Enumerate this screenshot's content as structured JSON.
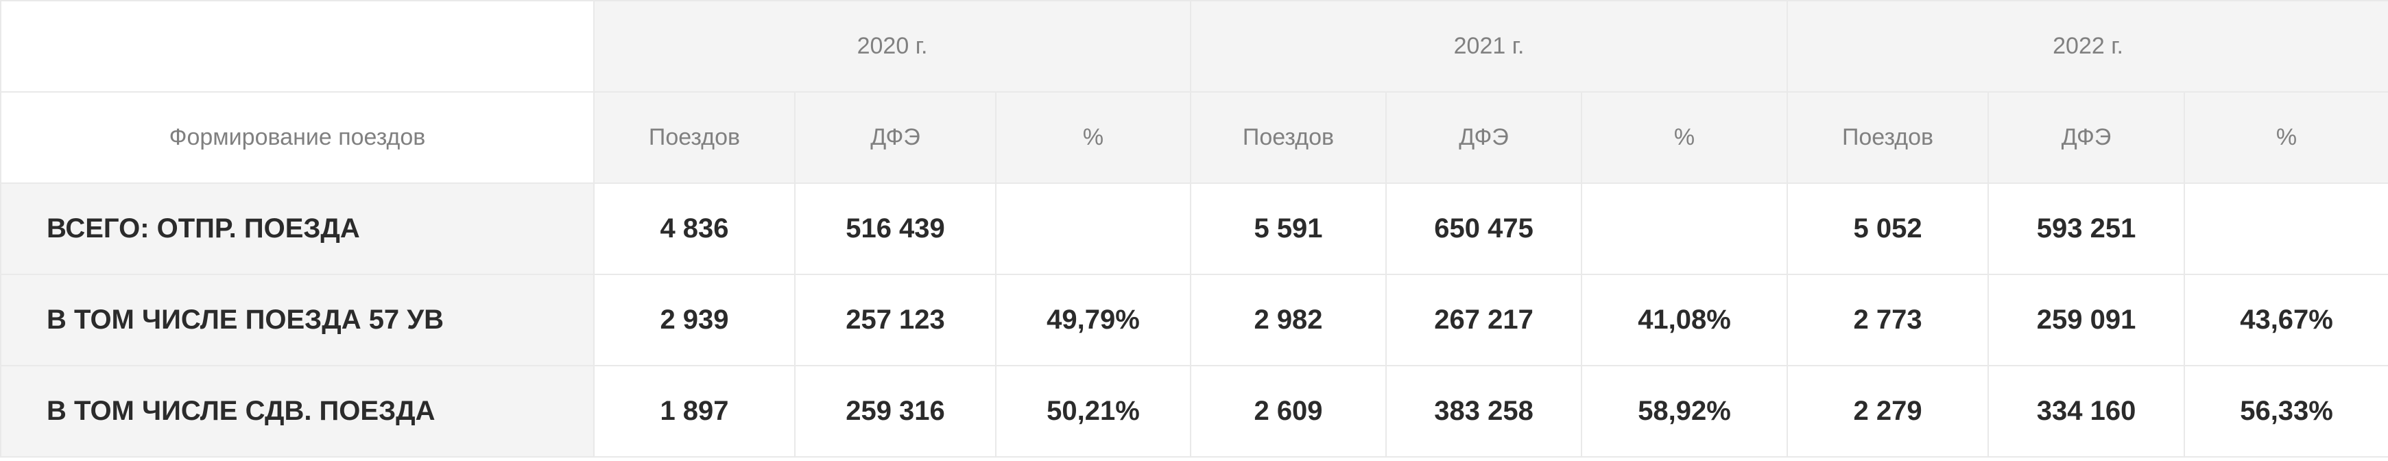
{
  "table": {
    "row_header": "Формирование поездов",
    "years": [
      "2020 г.",
      "2021 г.",
      "2022 г."
    ],
    "subcolumns": [
      "Поездов",
      "ДФЭ",
      "%"
    ],
    "rows": [
      {
        "label": "ВСЕГО: ОТПР. ПОЕЗДА",
        "values": [
          "4 836",
          "516 439",
          "",
          "5 591",
          "650 475",
          "",
          "5 052",
          "593 251",
          ""
        ]
      },
      {
        "label": "В ТОМ ЧИСЛЕ ПОЕЗДА 57 УВ",
        "values": [
          "2 939",
          "257 123",
          "49,79%",
          "2 982",
          "267 217",
          "41,08%",
          "2 773",
          "259 091",
          "43,67%"
        ]
      },
      {
        "label": "В ТОМ ЧИСЛЕ СДВ. ПОЕЗДА",
        "values": [
          "1 897",
          "259 316",
          "50,21%",
          "2 609",
          "383 258",
          "58,92%",
          "2 279",
          "334 160",
          "56,33%"
        ]
      }
    ]
  },
  "colors": {
    "header_bg": "#f4f4f4",
    "header_text": "#808080",
    "body_text": "#2b2b2b",
    "border": "#e9e9e9"
  }
}
